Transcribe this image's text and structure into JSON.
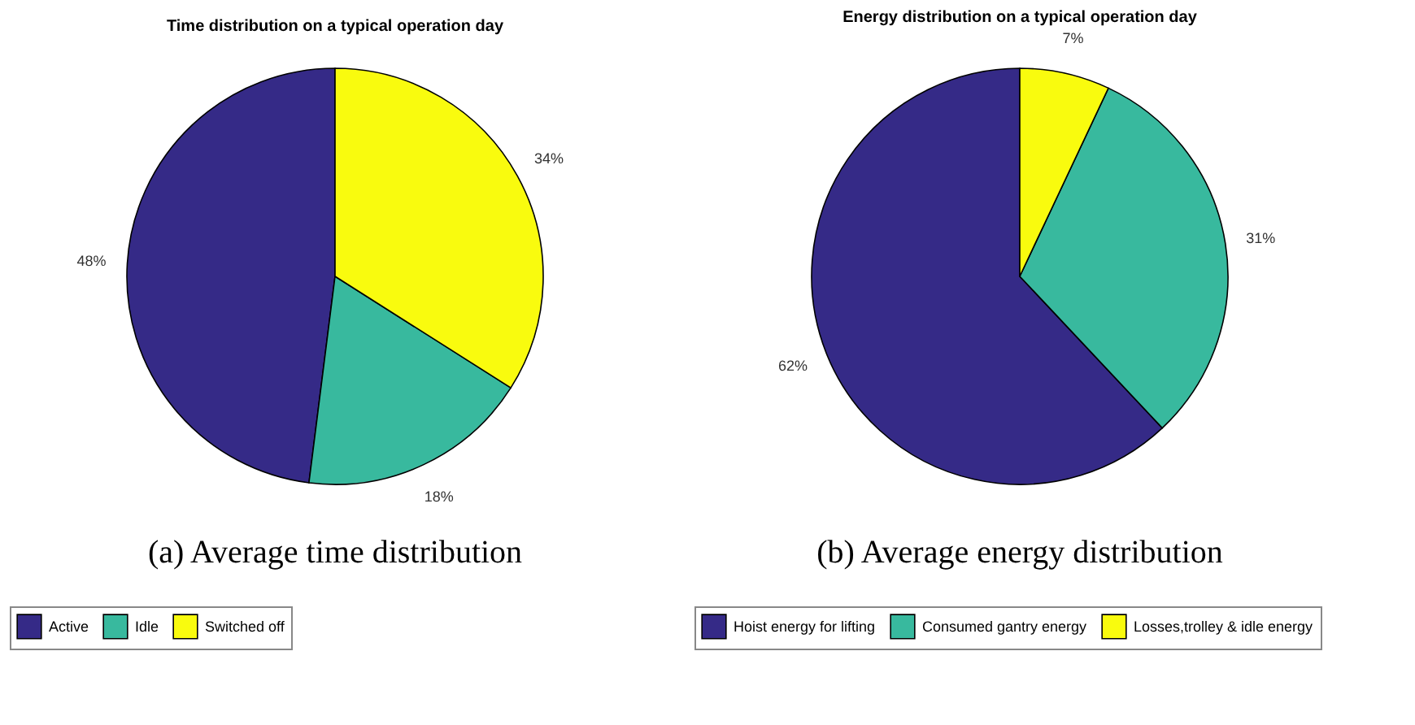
{
  "chart_data": [
    {
      "type": "pie",
      "title": "Time distribution on a typical operation day",
      "categories": [
        "Active",
        "Idle",
        "Switched off"
      ],
      "values": [
        48,
        18,
        34
      ],
      "colors": [
        "#352a87",
        "#38b99e",
        "#f9fb0e"
      ],
      "value_labels": [
        "48%",
        "18%",
        "34%"
      ],
      "legend": "bottom",
      "annotations": [
        "(a) Average time distribution"
      ]
    },
    {
      "type": "pie",
      "title": "Energy distribution on a typical operation day",
      "categories": [
        "Hoist energy for lifting",
        "Consumed gantry energy",
        "Losses,trolley & idle energy"
      ],
      "values": [
        62,
        31,
        7
      ],
      "colors": [
        "#352a87",
        "#38b99e",
        "#f9fb0e"
      ],
      "value_labels": [
        "62%",
        "31%",
        "7%"
      ],
      "legend": "bottom",
      "annotations": [
        "(b) Average energy distribution"
      ]
    }
  ]
}
